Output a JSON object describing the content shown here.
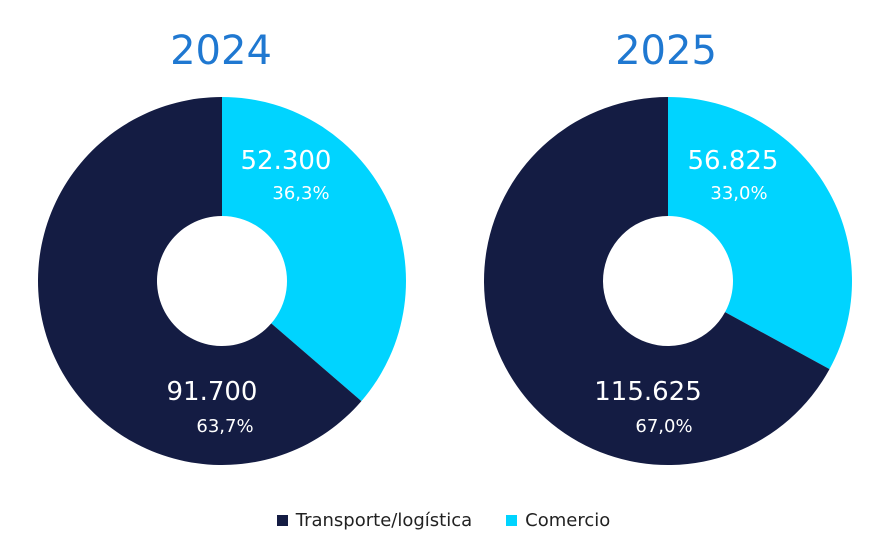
{
  "chart_data": [
    {
      "type": "pie",
      "variant": "donut",
      "title": "2024",
      "categories": [
        "Comercio",
        "Transporte/logística"
      ],
      "values": [
        52300,
        91700
      ],
      "value_labels": [
        "52.300",
        "91.700"
      ],
      "percent_labels": [
        "36,3%",
        "63,7%"
      ],
      "percentages": [
        36.3,
        63.7
      ],
      "colors": [
        "#00d4ff",
        "#141c43"
      ]
    },
    {
      "type": "pie",
      "variant": "donut",
      "title": "2025",
      "categories": [
        "Comercio",
        "Transporte/logística"
      ],
      "values": [
        56825,
        115625
      ],
      "value_labels": [
        "56.825",
        "115.625"
      ],
      "percent_labels": [
        "33,0%",
        "67,0%"
      ],
      "percentages": [
        33.0,
        67.0
      ],
      "colors": [
        "#00d4ff",
        "#141c43"
      ]
    }
  ],
  "legend": {
    "position": "bottom",
    "items": [
      {
        "label": "Transporte/logística",
        "color": "#141c43"
      },
      {
        "label": "Comercio",
        "color": "#00d4ff"
      }
    ]
  },
  "colors": {
    "title": "#1f78d1",
    "label_text": "#ffffff"
  }
}
